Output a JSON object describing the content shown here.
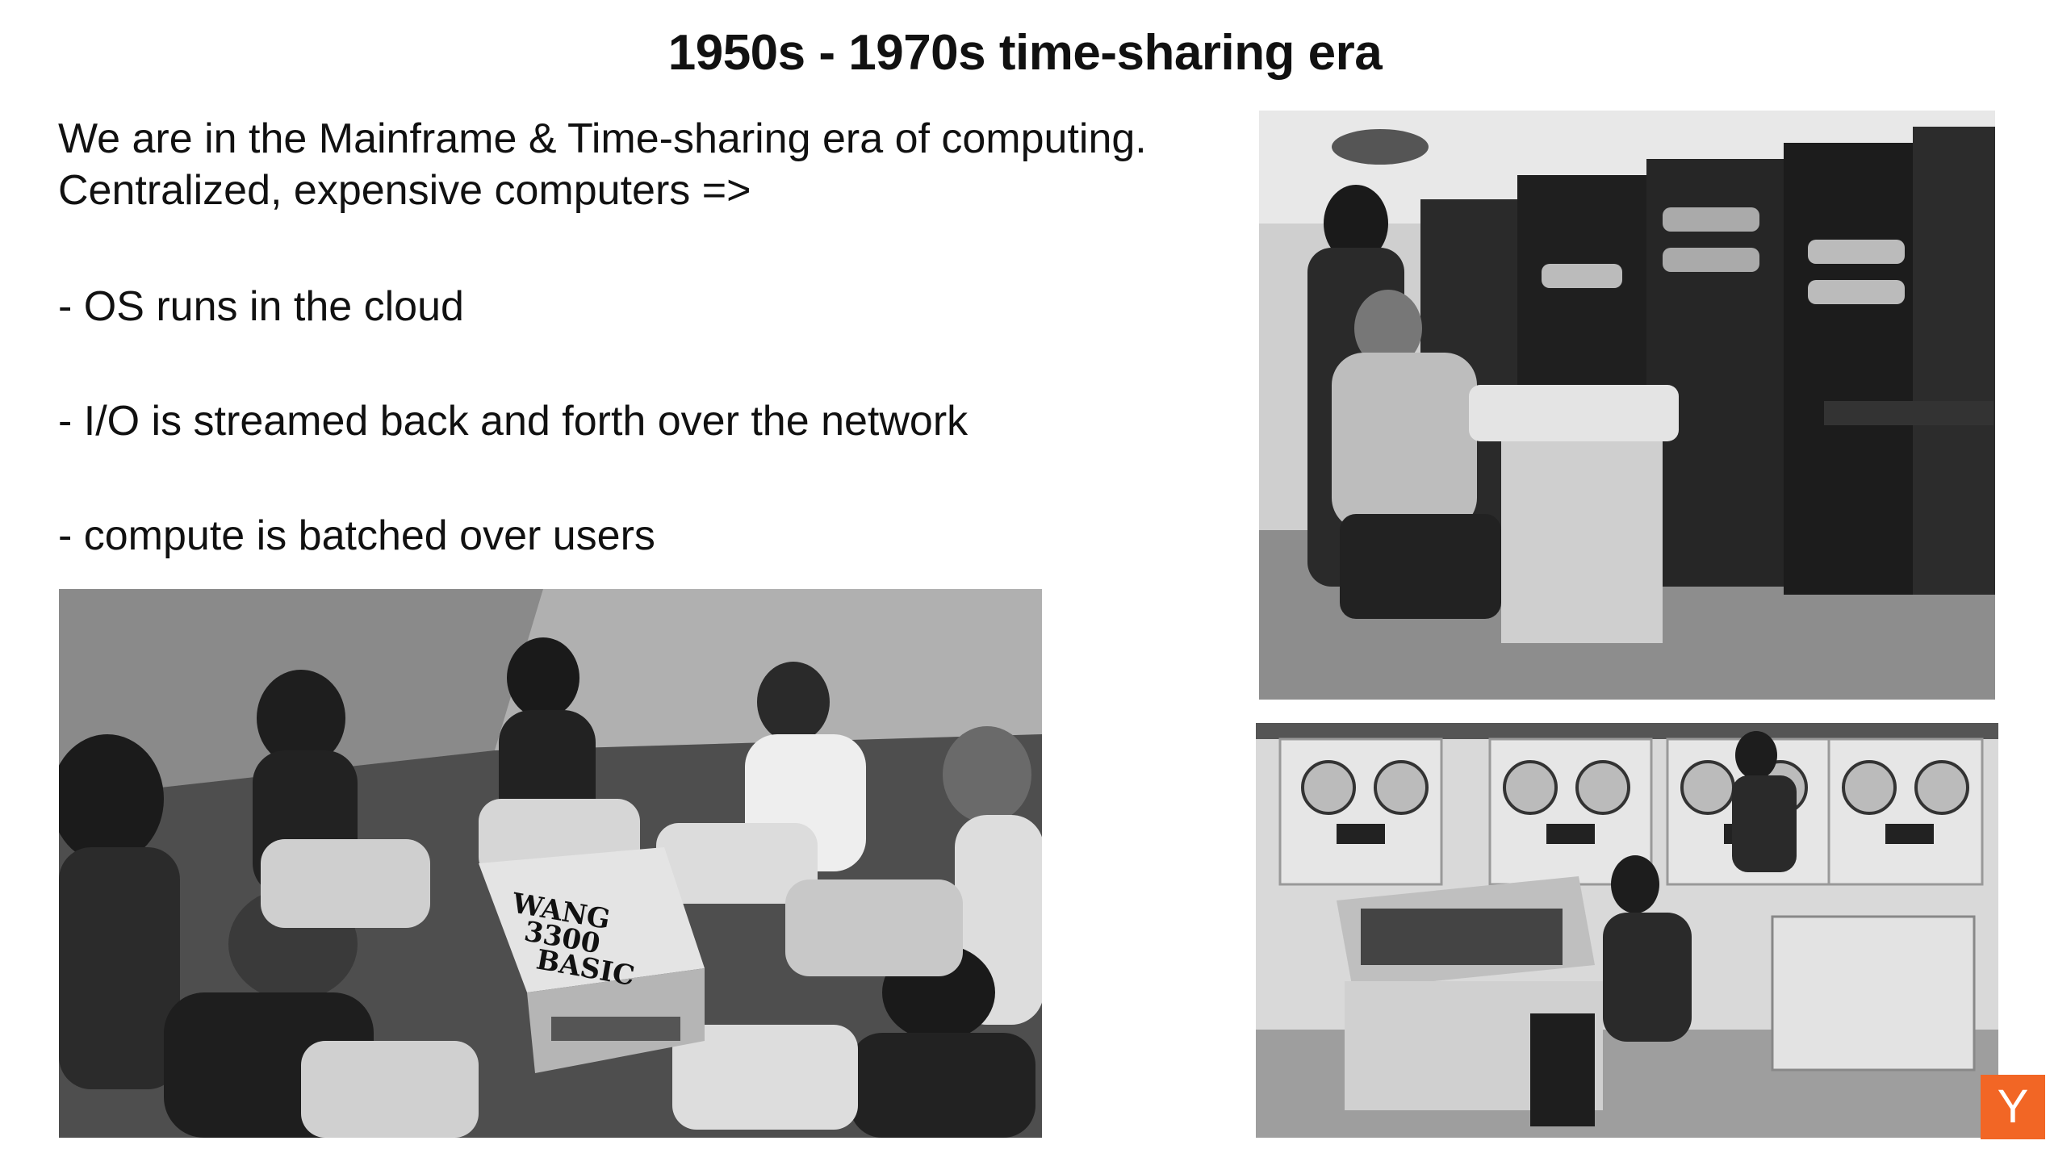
{
  "slide": {
    "title": "1950s - 1970s time-sharing era",
    "intro_lines": [
      "We are in the Mainframe & Time-sharing era of computing.",
      "Centralized, expensive computers =>"
    ],
    "bullets": [
      "- OS runs in the cloud",
      "- I/O is streamed back and forth over the network",
      "- compute is batched over users"
    ],
    "photos": {
      "terminals": {
        "label": "WANG 3300 BASIC"
      },
      "minicomputer": {},
      "tape_room": {}
    },
    "logo": {
      "letter": "Y",
      "color": "#f26625"
    }
  }
}
